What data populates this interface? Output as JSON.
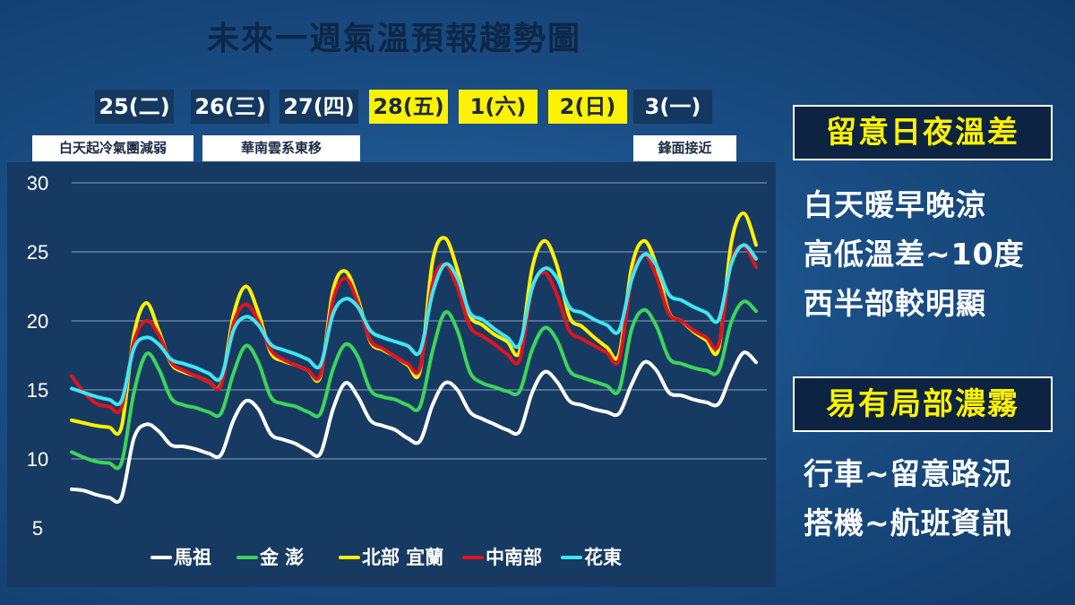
{
  "title": "未來一週氣溫預報趨勢圖",
  "days": [
    {
      "label": "25(二)",
      "weekend": false
    },
    {
      "label": "26(三)",
      "weekend": false
    },
    {
      "label": "27(四)",
      "weekend": false
    },
    {
      "label": "28(五)",
      "weekend": true
    },
    {
      "label": "1(六)",
      "weekend": true
    },
    {
      "label": "2(日)",
      "weekend": true
    },
    {
      "label": "3(一)",
      "weekend": false
    }
  ],
  "notes": [
    "白天起冷氣團減弱",
    "華南雲系東移",
    "鋒面接近"
  ],
  "side": {
    "box1_title": "留意日夜溫差",
    "box1_lines": [
      "白天暖早晚涼",
      "高低溫差~10度",
      "西半部較明顯"
    ],
    "box2_title": "易有局部濃霧",
    "box2_lines": [
      "行車~留意路況",
      "搭機~航班資訊"
    ]
  },
  "colors": {
    "white": "#ffffff",
    "green": "#3dd45a",
    "yellow": "#fff200",
    "red": "#e0141e",
    "cyan": "#3fe6f2",
    "chart_bg": "#173a63"
  },
  "chart_data": {
    "type": "line",
    "title": "",
    "xlabel": "",
    "ylabel": "",
    "ylim": [
      5,
      30
    ],
    "yticks": [
      30,
      25,
      20,
      15,
      10,
      5
    ],
    "x": [
      0,
      1,
      2,
      3,
      4,
      5,
      6,
      7,
      8,
      9,
      10,
      11,
      12,
      13,
      14,
      15,
      16,
      17,
      18,
      19,
      20,
      21,
      22,
      23,
      24,
      25,
      26,
      27,
      28,
      29,
      30,
      31,
      32,
      33,
      34,
      35,
      36,
      37,
      38,
      39,
      40,
      41,
      42,
      43,
      44,
      45,
      46,
      47,
      48,
      49,
      50,
      51,
      52,
      53,
      54,
      55
    ],
    "grid": true,
    "legend_position": "bottom",
    "series": [
      {
        "name": "馬祖",
        "color": "#ffffff",
        "values": [
          7.8,
          7.7,
          7.4,
          7.2,
          7.2,
          11.5,
          12.5,
          12.0,
          11.0,
          10.9,
          10.7,
          10.4,
          10.3,
          12.8,
          14.2,
          13.6,
          11.8,
          11.4,
          11.1,
          10.6,
          10.4,
          13.6,
          15.5,
          14.5,
          12.8,
          12.4,
          12.1,
          11.5,
          11.3,
          13.9,
          15.5,
          15.0,
          13.4,
          12.9,
          12.5,
          12.1,
          12.0,
          14.8,
          16.3,
          15.6,
          14.2,
          13.9,
          13.6,
          13.4,
          13.3,
          15.4,
          17.0,
          16.4,
          14.8,
          14.6,
          14.3,
          14.1,
          14.0,
          16.1,
          17.7,
          17.0
        ]
      },
      {
        "name": "金 澎",
        "color": "#3dd45a",
        "values": [
          10.5,
          10.1,
          9.8,
          9.7,
          9.7,
          14.8,
          17.6,
          16.5,
          14.4,
          13.9,
          13.7,
          13.4,
          13.3,
          16.2,
          18.2,
          17.0,
          14.5,
          14.0,
          13.8,
          13.4,
          13.3,
          16.5,
          18.3,
          17.4,
          15.0,
          14.5,
          14.3,
          13.9,
          13.8,
          17.8,
          20.6,
          19.3,
          16.3,
          15.5,
          15.2,
          14.9,
          14.9,
          17.9,
          19.5,
          18.6,
          16.4,
          15.9,
          15.6,
          15.3,
          15.0,
          19.4,
          20.8,
          19.6,
          17.3,
          16.9,
          16.6,
          16.4,
          16.4,
          19.9,
          21.4,
          20.7
        ]
      },
      {
        "name": "北部 宜蘭",
        "color": "#fff200",
        "values": [
          12.8,
          12.6,
          12.4,
          12.3,
          12.3,
          19.0,
          21.3,
          19.3,
          16.9,
          16.3,
          16.0,
          15.6,
          15.4,
          20.4,
          22.5,
          20.6,
          17.7,
          17.1,
          16.8,
          16.4,
          16.0,
          22.2,
          23.6,
          21.6,
          18.5,
          17.9,
          17.4,
          16.8,
          16.4,
          24.3,
          26.0,
          23.7,
          20.4,
          19.7,
          19.0,
          18.5,
          17.8,
          23.8,
          25.8,
          24.0,
          20.3,
          19.6,
          18.8,
          18.1,
          17.6,
          23.9,
          25.8,
          24.0,
          20.6,
          20.0,
          19.2,
          18.6,
          18.0,
          25.6,
          27.8,
          25.5
        ]
      },
      {
        "name": "中南部",
        "color": "#e0141e",
        "values": [
          16.0,
          14.8,
          14.0,
          13.8,
          13.7,
          18.5,
          20.0,
          19.0,
          17.0,
          16.4,
          16.0,
          15.6,
          15.3,
          19.8,
          21.2,
          20.0,
          17.9,
          17.2,
          16.8,
          16.4,
          16.1,
          21.5,
          23.1,
          21.3,
          18.6,
          18.0,
          17.4,
          16.9,
          16.6,
          22.7,
          24.1,
          22.4,
          19.6,
          18.9,
          18.3,
          17.6,
          17.2,
          22.3,
          23.5,
          21.9,
          19.3,
          18.7,
          18.2,
          17.7,
          17.2,
          23.0,
          24.8,
          23.2,
          20.5,
          20.0,
          19.3,
          18.8,
          18.3,
          24.2,
          25.4,
          23.9
        ]
      },
      {
        "name": "花東",
        "color": "#3fe6f2",
        "values": [
          15.1,
          14.8,
          14.5,
          14.3,
          14.2,
          18.0,
          18.8,
          18.3,
          17.2,
          16.9,
          16.6,
          16.2,
          15.9,
          19.3,
          20.3,
          19.7,
          18.3,
          17.9,
          17.6,
          17.2,
          16.8,
          20.5,
          21.6,
          21.0,
          19.3,
          18.8,
          18.5,
          18.2,
          17.8,
          22.0,
          24.1,
          23.1,
          20.6,
          20.1,
          19.4,
          18.8,
          18.3,
          22.4,
          23.8,
          23.1,
          21.0,
          20.6,
          20.1,
          19.7,
          19.3,
          23.0,
          24.8,
          24.0,
          21.9,
          21.5,
          21.0,
          20.6,
          20.1,
          24.1,
          25.5,
          24.5
        ]
      }
    ]
  }
}
